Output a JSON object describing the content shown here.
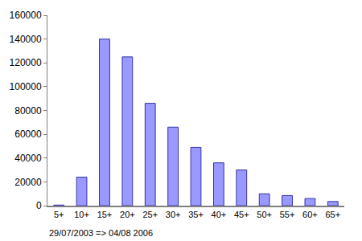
{
  "chart_data": {
    "type": "bar",
    "categories": [
      "5+",
      "10+",
      "15+",
      "20+",
      "25+",
      "30+",
      "35+",
      "40+",
      "45+",
      "50+",
      "55+",
      "60+",
      "65+"
    ],
    "values": [
      500,
      24000,
      140000,
      125000,
      86000,
      66000,
      49000,
      36000,
      30000,
      10000,
      8500,
      6000,
      3500
    ],
    "color": "#9999ff",
    "ylim": [
      0,
      160000
    ],
    "yticks": [
      0,
      20000,
      40000,
      60000,
      80000,
      100000,
      120000,
      140000,
      160000
    ],
    "grid": false,
    "annotations": [
      "29/07/2003 => 04/08 2006"
    ]
  }
}
